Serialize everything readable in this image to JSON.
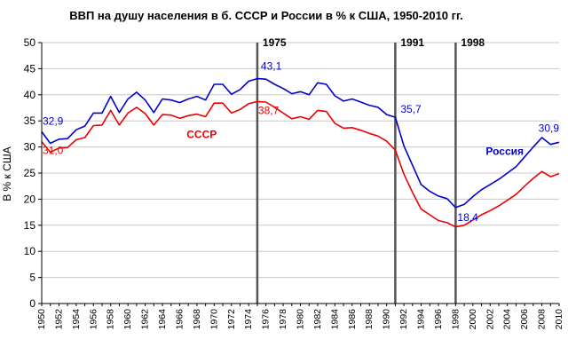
{
  "chart_data": {
    "type": "line",
    "title": "ВВП на душу населения в б. СССР и России в % к США, 1950-2010 гг.",
    "xlabel": "",
    "ylabel": "В % к США",
    "xlim": [
      1950,
      2010
    ],
    "ylim": [
      0,
      50
    ],
    "y_ticks": [
      0,
      5,
      10,
      15,
      20,
      25,
      30,
      35,
      40,
      45,
      50
    ],
    "x_ticks": [
      1950,
      1952,
      1954,
      1956,
      1958,
      1960,
      1962,
      1964,
      1966,
      1968,
      1970,
      1972,
      1974,
      1976,
      1978,
      1980,
      1982,
      1984,
      1986,
      1988,
      1990,
      1992,
      1994,
      1996,
      1998,
      2000,
      2002,
      2004,
      2006,
      2008,
      2010
    ],
    "grid": "horizontal",
    "x": [
      1950,
      1951,
      1952,
      1953,
      1954,
      1955,
      1956,
      1957,
      1958,
      1959,
      1960,
      1961,
      1962,
      1963,
      1964,
      1965,
      1966,
      1967,
      1968,
      1969,
      1970,
      1971,
      1972,
      1973,
      1974,
      1975,
      1976,
      1977,
      1978,
      1979,
      1980,
      1981,
      1982,
      1983,
      1984,
      1985,
      1986,
      1987,
      1988,
      1989,
      1990,
      1991,
      1992,
      1993,
      1994,
      1995,
      1996,
      1997,
      1998,
      1999,
      2000,
      2001,
      2002,
      2003,
      2004,
      2005,
      2006,
      2007,
      2008,
      2009,
      2010
    ],
    "series": [
      {
        "name": "Россия",
        "color": "#0000cc",
        "values": [
          32.9,
          30.7,
          31.5,
          31.6,
          33.3,
          34.0,
          36.5,
          36.5,
          39.7,
          36.6,
          39.2,
          40.5,
          39.0,
          36.6,
          39.2,
          39.0,
          38.5,
          39.2,
          39.7,
          39.0,
          42.0,
          42.0,
          40.1,
          41.0,
          42.6,
          43.1,
          43.0,
          42.0,
          41.2,
          40.2,
          40.6,
          40.0,
          42.3,
          42.0,
          39.8,
          38.8,
          39.2,
          38.6,
          38.0,
          37.6,
          36.2,
          35.7,
          30.2,
          26.5,
          22.8,
          21.5,
          20.6,
          20.1,
          18.4,
          19.0,
          20.5,
          21.8,
          22.8,
          23.8,
          25.0,
          26.2,
          28.1,
          30.0,
          31.8,
          30.5,
          30.9
        ]
      },
      {
        "name": "СССР",
        "color": "#ee0000",
        "values": [
          31.0,
          29.0,
          29.8,
          29.9,
          31.4,
          31.8,
          34.1,
          34.2,
          37.0,
          34.2,
          36.5,
          37.6,
          36.4,
          34.2,
          36.2,
          36.1,
          35.5,
          36.0,
          36.3,
          35.8,
          38.4,
          38.4,
          36.5,
          37.2,
          38.3,
          38.7,
          38.6,
          37.6,
          36.5,
          35.4,
          35.8,
          35.3,
          37.0,
          36.8,
          34.5,
          33.6,
          33.7,
          33.2,
          32.6,
          32.1,
          31.1,
          29.4,
          24.8,
          21.3,
          18.1,
          17.0,
          15.9,
          15.5,
          14.7,
          15.0,
          16.0,
          17.0,
          17.8,
          18.7,
          19.8,
          20.9,
          22.5,
          24.0,
          25.3,
          24.3,
          24.9
        ]
      }
    ],
    "series_labels": [
      {
        "text": "Россия",
        "series": 0,
        "x": 2001.5,
        "y": 29.2
      },
      {
        "text": "СССР",
        "series": 1,
        "x": 1966.8,
        "y": 32.4
      }
    ],
    "annotations": [
      {
        "text": "32,9",
        "series": 0,
        "x": 1950,
        "y": 32.9
      },
      {
        "text": "31,0",
        "series": 1,
        "x": 1950,
        "y": 31.0
      },
      {
        "text": "43,1",
        "series": 0,
        "x": 1975,
        "y": 43.1
      },
      {
        "text": "38,7",
        "series": 1,
        "x": 1975,
        "y": 38.7
      },
      {
        "text": "35,7",
        "series": 0,
        "x": 1991,
        "y": 35.7
      },
      {
        "text": "18,4",
        "series": 0,
        "x": 1998,
        "y": 18.4
      },
      {
        "text": "30,9",
        "series": 0,
        "x": 2010,
        "y": 30.9
      }
    ],
    "vertical_lines": [
      {
        "x": 1975,
        "label": "1975"
      },
      {
        "x": 1991,
        "label": "1991"
      },
      {
        "x": 1998,
        "label": "1998"
      }
    ]
  }
}
